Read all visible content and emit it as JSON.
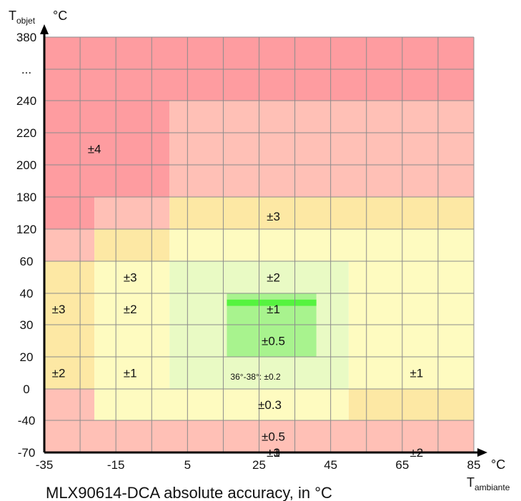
{
  "chart_data": {
    "type": "heatmap",
    "title": "MLX90614-DCA absolute accuracy, in °C",
    "x_axis": {
      "symbol": "T",
      "subscript": "ambiante",
      "unit": "°C",
      "tick_labels": [
        "-35",
        "-15",
        "5",
        "25",
        "45",
        "65",
        "85"
      ],
      "tick_values": [
        -35,
        -15,
        5,
        25,
        45,
        65,
        85
      ],
      "range": [
        -35,
        85
      ],
      "grid_step": 10
    },
    "y_axis": {
      "symbol": "T",
      "subscript": "objet",
      "unit": "°C",
      "tick_labels": [
        "380",
        "...",
        "240",
        "220",
        "200",
        "180",
        "120",
        "60",
        "40",
        "30",
        "20",
        "0",
        "-40",
        "-70"
      ],
      "note": "non-linear axis: equally spaced bands"
    },
    "grid": true,
    "colors": {
      "pm4": "#fe9ca0",
      "pm3": "#ffc0b6",
      "pm2": "#fde8a4",
      "pm1": "#fefbc0",
      "pm05": "#e9fac4",
      "pm03": "#a8f38e",
      "pm02": "#55f33f",
      "grid": "#8c8c8c"
    },
    "zones": [
      {
        "accuracy": "±4",
        "x_range": [
          -35,
          85
        ],
        "y_range": [
          "240",
          "380"
        ],
        "color": "pm4"
      },
      {
        "accuracy": "±4",
        "x_range": [
          -35,
          0
        ],
        "y_range": [
          "180",
          "240"
        ],
        "color": "pm4"
      },
      {
        "accuracy": "±4",
        "x_range": [
          -35,
          -21
        ],
        "y_range": [
          "120",
          "180"
        ],
        "color": "pm4"
      },
      {
        "accuracy": "±3",
        "x_range": [
          0,
          85
        ],
        "y_range": [
          "180",
          "240"
        ],
        "color": "pm3"
      },
      {
        "accuracy": "±3",
        "x_range": [
          -21,
          0
        ],
        "y_range": [
          "120",
          "180"
        ],
        "color": "pm3"
      },
      {
        "accuracy": "±3",
        "x_range": [
          -35,
          -21
        ],
        "y_range": [
          "60",
          "120"
        ],
        "color": "pm3"
      },
      {
        "accuracy": "±3",
        "x_range": [
          -35,
          -21
        ],
        "y_range": [
          "-40",
          "0"
        ],
        "color": "pm3"
      },
      {
        "accuracy": "±3",
        "x_range": [
          -35,
          85
        ],
        "y_range": [
          "-70",
          "-40"
        ],
        "color": "pm3"
      },
      {
        "accuracy": "±2",
        "x_range": [
          0,
          85
        ],
        "y_range": [
          "120",
          "180"
        ],
        "color": "pm2"
      },
      {
        "accuracy": "±2",
        "x_range": [
          -21,
          0
        ],
        "y_range": [
          "60",
          "120"
        ],
        "color": "pm2"
      },
      {
        "accuracy": "±2",
        "x_range": [
          -35,
          -21
        ],
        "y_range": [
          "0",
          "60"
        ],
        "color": "pm2"
      },
      {
        "accuracy": "±2",
        "x_range": [
          50,
          85
        ],
        "y_range": [
          "-40",
          "0"
        ],
        "color": "pm2"
      },
      {
        "accuracy": "±1",
        "x_range": [
          0,
          85
        ],
        "y_range": [
          "60",
          "120"
        ],
        "color": "pm1"
      },
      {
        "accuracy": "±1",
        "x_range": [
          -21,
          0
        ],
        "y_range": [
          "0",
          "60"
        ],
        "color": "pm1"
      },
      {
        "accuracy": "±1",
        "x_range": [
          50,
          85
        ],
        "y_range": [
          "0",
          "60"
        ],
        "color": "pm1"
      },
      {
        "accuracy": "±1",
        "x_range": [
          -21,
          50
        ],
        "y_range": [
          "-40",
          "0"
        ],
        "color": "pm1"
      },
      {
        "accuracy": "±0.5",
        "x_range": [
          0,
          50
        ],
        "y_range": [
          "0",
          "60"
        ],
        "color": "pm05"
      },
      {
        "accuracy": "±0.3",
        "x_range": [
          16,
          41
        ],
        "y_range": [
          "20",
          "40"
        ],
        "color": "pm03"
      },
      {
        "accuracy": "36°-38°: ±0.2",
        "x_range": [
          16,
          41
        ],
        "y_range": [
          "36",
          "38"
        ],
        "color": "pm02"
      }
    ],
    "zone_labels": [
      {
        "text": "±4",
        "x": -21,
        "y_band": 3.5
      },
      {
        "text": "±3",
        "x": 29,
        "y_band": 5.6
      },
      {
        "text": "±3",
        "x": -11,
        "y_band": 7.5
      },
      {
        "text": "±2",
        "x": 29,
        "y_band": 7.5
      },
      {
        "text": "±3",
        "x": -31,
        "y_band": 8.5
      },
      {
        "text": "±2",
        "x": -11,
        "y_band": 8.5
      },
      {
        "text": "±1",
        "x": 29,
        "y_band": 8.5
      },
      {
        "text": "±0.5",
        "x": 29,
        "y_band": 9.5
      },
      {
        "text": "±2",
        "x": -31,
        "y_band": 10.5
      },
      {
        "text": "±1",
        "x": -11,
        "y_band": 10.5
      },
      {
        "text": "±1",
        "x": 69,
        "y_band": 10.5
      },
      {
        "text": "±0.3",
        "x": 28,
        "y_band": 11.5
      },
      {
        "text": "±0.5",
        "x": 29,
        "y_band": 12.5
      },
      {
        "text": "±1",
        "x": 29,
        "y_band": 13.5
      },
      {
        "text": "±2",
        "x": 69,
        "y_band": 13.5
      },
      {
        "text": "±3",
        "x": 29,
        "y_band": 14.5
      }
    ],
    "band_label": {
      "text": "36°-38°: ±0.2",
      "x": 17,
      "y_band": 10.6
    }
  }
}
